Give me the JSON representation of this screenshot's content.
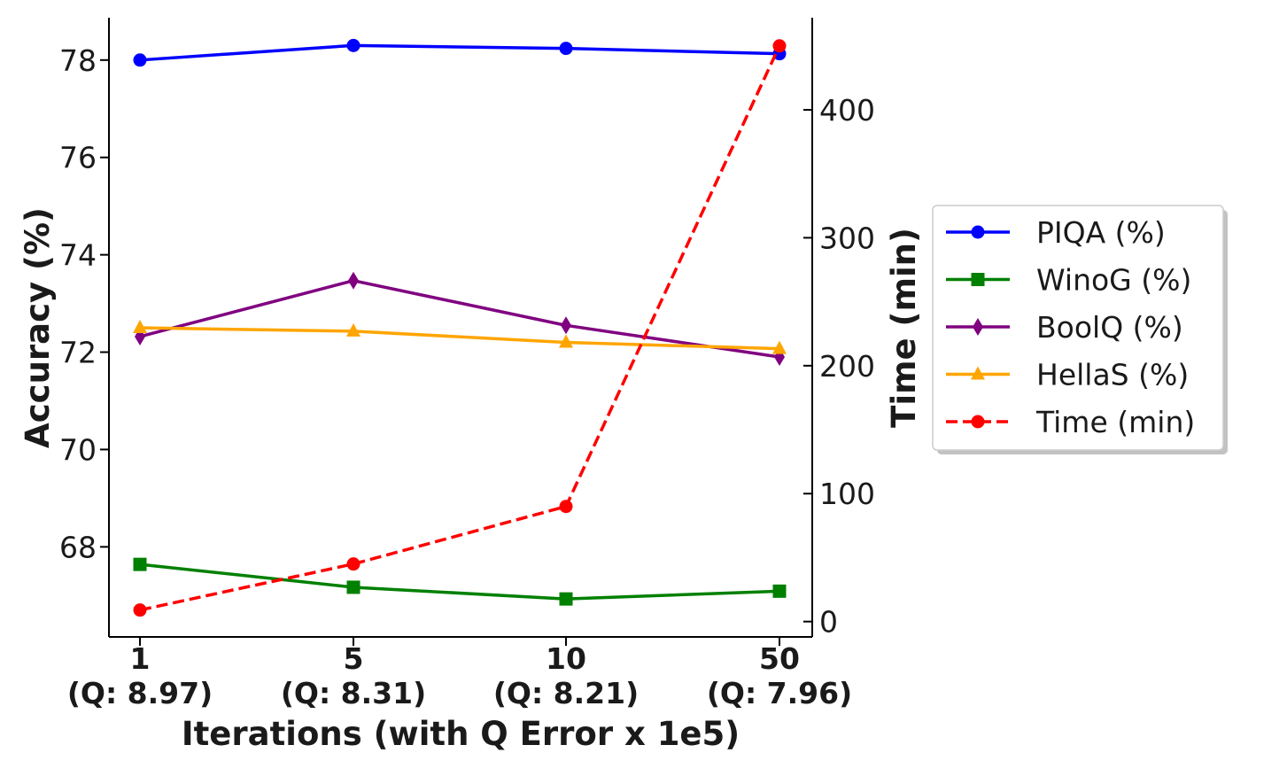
{
  "chart_data": {
    "type": "line",
    "title": "",
    "xlabel": "Iterations (with Q Error x 1e5)",
    "ylabel_left": "Accuracy (%)",
    "ylabel_right": "Time (min)",
    "categories": [
      "1",
      "5",
      "10",
      "50"
    ],
    "category_sublabels": [
      "(Q: 8.97)",
      "(Q: 8.31)",
      "(Q: 8.21)",
      "(Q: 7.96)"
    ],
    "ylim_left": [
      66.15,
      78.87
    ],
    "ylim_right": [
      -12,
      472
    ],
    "yticks_left": [
      68,
      70,
      72,
      74,
      76,
      78
    ],
    "yticks_right": [
      0,
      100,
      200,
      300,
      400
    ],
    "legend_position": "right",
    "series": [
      {
        "name": "PIQA (%)",
        "axis": "left",
        "color": "#0000ff",
        "marker": "circle",
        "dash": "solid",
        "values": [
          78.0,
          78.3,
          78.24,
          78.13
        ]
      },
      {
        "name": "WinoG (%)",
        "axis": "left",
        "color": "#008000",
        "marker": "square",
        "dash": "solid",
        "values": [
          67.64,
          67.17,
          66.93,
          67.09
        ]
      },
      {
        "name": "BoolQ (%)",
        "axis": "left",
        "color": "#800080",
        "marker": "diamond",
        "dash": "solid",
        "values": [
          72.32,
          73.47,
          72.55,
          71.9
        ]
      },
      {
        "name": "HellaS (%)",
        "axis": "left",
        "color": "#ffa500",
        "marker": "triangle",
        "dash": "solid",
        "values": [
          72.5,
          72.43,
          72.2,
          72.07
        ]
      },
      {
        "name": "Time (min)",
        "axis": "right",
        "color": "#ff0000",
        "marker": "circle",
        "dash": "dashed",
        "values": [
          9,
          45,
          90,
          450
        ]
      }
    ]
  }
}
